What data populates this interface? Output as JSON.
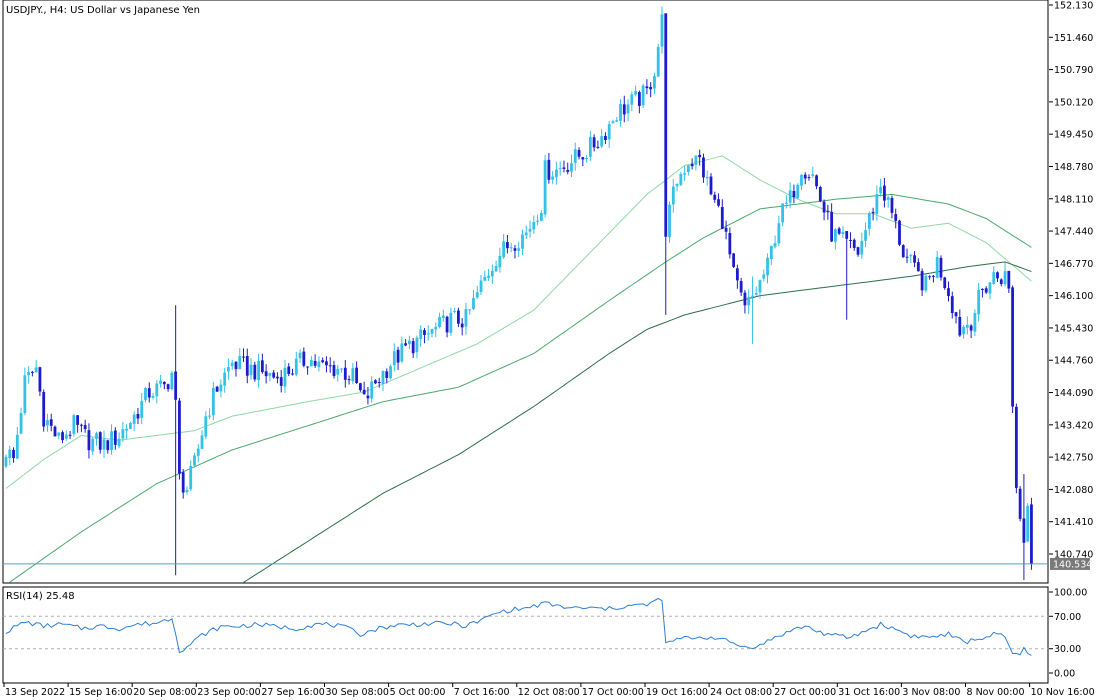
{
  "window": {
    "title": "USDJPY., H4:  US Dollar vs Japanese Yen"
  },
  "colors": {
    "bull_candle": "#33c1e8",
    "bear_candle": "#1c1ccc",
    "ma_fast": "#90d8a8",
    "ma_mid": "#4ca86c",
    "ma_slow": "#2e6e48",
    "rsi_line": "#2c7fd6",
    "price_line": "#5aa0b4",
    "price_tag_bg": "#7a7a7a",
    "frame": "#000000"
  },
  "chart_data": [
    {
      "type": "candlestick",
      "symbol": "USDJPY.",
      "timeframe": "H4",
      "title": "USDJPY., H4:  US Dollar vs Japanese Yen",
      "ylim": [
        140.0,
        152.2
      ],
      "y_ticks": [
        "152.130",
        "151.460",
        "150.790",
        "150.120",
        "149.450",
        "148.780",
        "148.110",
        "147.440",
        "146.770",
        "146.100",
        "145.430",
        "144.760",
        "144.090",
        "143.420",
        "142.750",
        "142.080",
        "141.410",
        "140.740"
      ],
      "x_ticks": [
        "13 Sep 2022",
        "15 Sep 16:00",
        "20 Sep 08:00",
        "23 Sep 00:00",
        "27 Sep 16:00",
        "30 Sep 08:00",
        "5 Oct 00:00",
        "7 Oct 16:00",
        "12 Oct 08:00",
        "17 Oct 00:00",
        "19 Oct 16:00",
        "24 Oct 08:00",
        "27 Oct 00:00",
        "31 Oct 16:00",
        "3 Nov 08:00",
        "8 Nov 00:00",
        "10 Nov 16:00"
      ],
      "current_price": 140.534,
      "current_price_label": "140.534",
      "anchors": [
        [
          0,
          142.9
        ],
        [
          2,
          142.7
        ],
        [
          5,
          144.3
        ],
        [
          8,
          144.6
        ],
        [
          10,
          143.6
        ],
        [
          14,
          143.1
        ],
        [
          18,
          143.4
        ],
        [
          22,
          143.1
        ],
        [
          26,
          143.0
        ],
        [
          30,
          143.2
        ],
        [
          34,
          143.6
        ],
        [
          38,
          144.1
        ],
        [
          42,
          144.2
        ],
        [
          44,
          144.5
        ],
        [
          45,
          143.8
        ],
        [
          46,
          142.3
        ],
        [
          48,
          142.1
        ],
        [
          50,
          142.6
        ],
        [
          53,
          143.6
        ],
        [
          56,
          144.2
        ],
        [
          60,
          144.7
        ],
        [
          64,
          144.6
        ],
        [
          68,
          144.5
        ],
        [
          72,
          144.4
        ],
        [
          76,
          144.6
        ],
        [
          80,
          144.8
        ],
        [
          84,
          144.6
        ],
        [
          88,
          144.6
        ],
        [
          92,
          144.4
        ],
        [
          95,
          143.9
        ],
        [
          98,
          144.3
        ],
        [
          102,
          144.7
        ],
        [
          106,
          145.0
        ],
        [
          110,
          145.2
        ],
        [
          114,
          145.4
        ],
        [
          118,
          145.6
        ],
        [
          122,
          145.6
        ],
        [
          126,
          146.3
        ],
        [
          130,
          146.9
        ],
        [
          134,
          147.2
        ],
        [
          138,
          147.4
        ],
        [
          142,
          148.0
        ],
        [
          143,
          148.7
        ],
        [
          146,
          148.7
        ],
        [
          150,
          148.9
        ],
        [
          154,
          149.1
        ],
        [
          158,
          149.4
        ],
        [
          162,
          149.9
        ],
        [
          166,
          150.1
        ],
        [
          170,
          150.3
        ],
        [
          172,
          150.8
        ],
        [
          174,
          151.8
        ],
        [
          175,
          147.5
        ],
        [
          178,
          148.5
        ],
        [
          181,
          148.9
        ],
        [
          184,
          148.9
        ],
        [
          187,
          148.2
        ],
        [
          190,
          147.7
        ],
        [
          193,
          146.5
        ],
        [
          196,
          145.8
        ],
        [
          199,
          146.2
        ],
        [
          202,
          146.7
        ],
        [
          205,
          147.7
        ],
        [
          208,
          148.1
        ],
        [
          211,
          148.8
        ],
        [
          214,
          148.6
        ],
        [
          216,
          148.1
        ],
        [
          219,
          147.4
        ],
        [
          222,
          147.2
        ],
        [
          226,
          147.0
        ],
        [
          229,
          147.7
        ],
        [
          232,
          148.4
        ],
        [
          235,
          147.8
        ],
        [
          238,
          147.0
        ],
        [
          241,
          146.6
        ],
        [
          244,
          146.3
        ],
        [
          247,
          146.8
        ],
        [
          250,
          146.2
        ],
        [
          253,
          145.4
        ],
        [
          256,
          145.6
        ],
        [
          259,
          146.2
        ],
        [
          262,
          146.5
        ],
        [
          265,
          146.5
        ],
        [
          266,
          146.2
        ],
        [
          267,
          143.9
        ],
        [
          268,
          142.1
        ],
        [
          270,
          141.0
        ],
        [
          271,
          141.9
        ],
        [
          272,
          140.6
        ]
      ],
      "wicks": {
        "45": [
          145.9,
          140.3
        ],
        "175": [
          151.9,
          145.7
        ],
        "198": [
          146.5,
          145.1
        ],
        "223": [
          147.4,
          145.6
        ],
        "270": [
          142.4,
          140.2
        ]
      },
      "series": [
        {
          "name": "MA fast",
          "anchors": [
            [
              0,
              142.1
            ],
            [
              10,
              142.7
            ],
            [
              20,
              143.2
            ],
            [
              30,
              143.1
            ],
            [
              50,
              143.3
            ],
            [
              60,
              143.6
            ],
            [
              80,
              143.9
            ],
            [
              95,
              144.1
            ],
            [
              110,
              144.6
            ],
            [
              125,
              145.1
            ],
            [
              140,
              145.8
            ],
            [
              155,
              147.0
            ],
            [
              170,
              148.2
            ],
            [
              180,
              148.8
            ],
            [
              190,
              149.0
            ],
            [
              200,
              148.5
            ],
            [
              210,
              148.1
            ],
            [
              220,
              147.8
            ],
            [
              230,
              147.8
            ],
            [
              240,
              147.5
            ],
            [
              250,
              147.6
            ],
            [
              260,
              147.2
            ],
            [
              272,
              146.4
            ]
          ]
        },
        {
          "name": "MA mid",
          "anchors": [
            [
              0,
              140.1
            ],
            [
              20,
              141.2
            ],
            [
              40,
              142.2
            ],
            [
              60,
              142.9
            ],
            [
              80,
              143.4
            ],
            [
              100,
              143.9
            ],
            [
              120,
              144.2
            ],
            [
              140,
              144.9
            ],
            [
              160,
              146.0
            ],
            [
              175,
              146.8
            ],
            [
              185,
              147.3
            ],
            [
              200,
              147.9
            ],
            [
              220,
              148.1
            ],
            [
              235,
              148.2
            ],
            [
              250,
              148.0
            ],
            [
              260,
              147.7
            ],
            [
              272,
              147.1
            ]
          ]
        },
        {
          "name": "MA slow",
          "anchors": [
            [
              5,
              139.9
            ],
            [
              40,
              139.6
            ],
            [
              60,
              140.0
            ],
            [
              80,
              141.0
            ],
            [
              100,
              142.0
            ],
            [
              120,
              142.8
            ],
            [
              140,
              143.8
            ],
            [
              160,
              144.9
            ],
            [
              170,
              145.4
            ],
            [
              180,
              145.7
            ],
            [
              200,
              146.1
            ],
            [
              220,
              146.3
            ],
            [
              240,
              146.5
            ],
            [
              255,
              146.7
            ],
            [
              265,
              146.8
            ],
            [
              272,
              146.6
            ]
          ]
        }
      ]
    },
    {
      "type": "line",
      "title": "RSI(14) 25.48",
      "ylim": [
        0,
        100
      ],
      "y_ticks": [
        "100.00",
        "70.00",
        "30.00",
        "0.00"
      ],
      "levels": [
        70,
        30
      ],
      "anchors": [
        [
          0,
          51
        ],
        [
          5,
          63
        ],
        [
          10,
          58
        ],
        [
          15,
          60
        ],
        [
          20,
          55
        ],
        [
          25,
          58
        ],
        [
          30,
          55
        ],
        [
          35,
          60
        ],
        [
          40,
          62
        ],
        [
          44,
          68
        ],
        [
          45,
          50
        ],
        [
          46,
          28
        ],
        [
          48,
          32
        ],
        [
          52,
          47
        ],
        [
          57,
          57
        ],
        [
          62,
          58
        ],
        [
          67,
          60
        ],
        [
          72,
          57
        ],
        [
          77,
          55
        ],
        [
          82,
          60
        ],
        [
          86,
          60
        ],
        [
          90,
          56
        ],
        [
          94,
          48
        ],
        [
          98,
          54
        ],
        [
          103,
          59
        ],
        [
          108,
          60
        ],
        [
          113,
          61
        ],
        [
          118,
          61
        ],
        [
          122,
          58
        ],
        [
          126,
          65
        ],
        [
          130,
          74
        ],
        [
          134,
          78
        ],
        [
          138,
          80
        ],
        [
          143,
          86
        ],
        [
          146,
          83
        ],
        [
          150,
          80
        ],
        [
          155,
          80
        ],
        [
          160,
          79
        ],
        [
          165,
          83
        ],
        [
          170,
          84
        ],
        [
          174,
          92
        ],
        [
          175,
          35
        ],
        [
          178,
          42
        ],
        [
          183,
          44
        ],
        [
          188,
          44
        ],
        [
          192,
          38
        ],
        [
          196,
          32
        ],
        [
          200,
          34
        ],
        [
          204,
          44
        ],
        [
          208,
          52
        ],
        [
          212,
          58
        ],
        [
          216,
          50
        ],
        [
          220,
          46
        ],
        [
          224,
          44
        ],
        [
          228,
          52
        ],
        [
          232,
          60
        ],
        [
          236,
          54
        ],
        [
          240,
          46
        ],
        [
          245,
          44
        ],
        [
          250,
          48
        ],
        [
          254,
          38
        ],
        [
          258,
          42
        ],
        [
          262,
          48
        ],
        [
          265,
          44
        ],
        [
          267,
          24
        ],
        [
          269,
          22
        ],
        [
          270,
          29
        ],
        [
          272,
          24
        ]
      ]
    }
  ]
}
